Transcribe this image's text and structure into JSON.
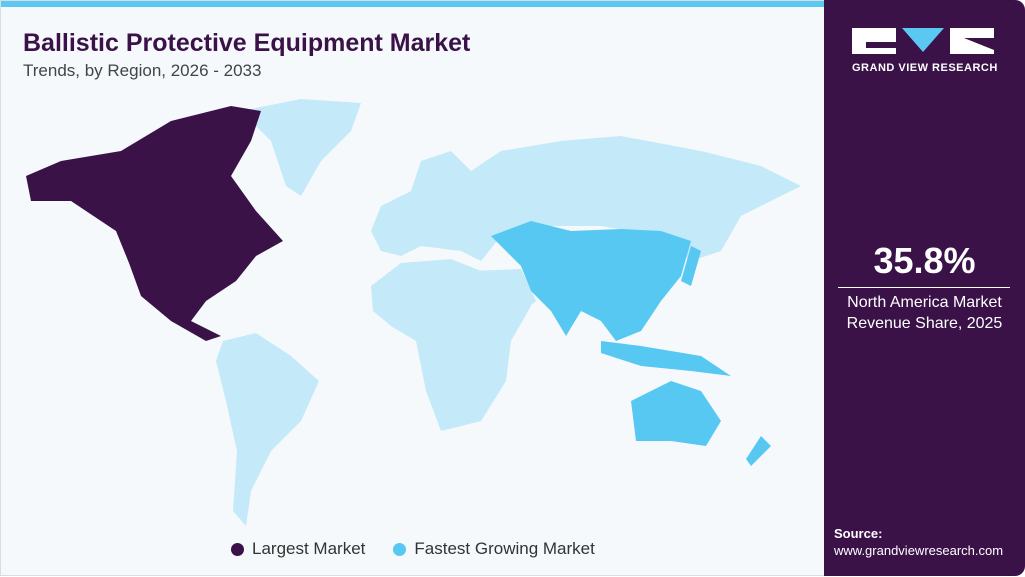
{
  "header": {
    "title": "Ballistic Protective Equipment Market",
    "subtitle": "Trends, by Region, 2026 - 2033"
  },
  "map": {
    "regions": [
      {
        "name": "North America",
        "category": "Largest Market"
      },
      {
        "name": "Asia Pacific",
        "category": "Fastest Growing Market"
      }
    ]
  },
  "legend": {
    "items": [
      {
        "label": "Largest Market",
        "color": "#3a1248"
      },
      {
        "label": "Fastest Growing Market",
        "color": "#57c8f2"
      }
    ]
  },
  "colors": {
    "largest": "#3a1248",
    "fastest": "#57c8f2",
    "other": "#c4e9f9",
    "panel": "#3a1248"
  },
  "sidebar": {
    "logo_text": "GRAND VIEW RESEARCH",
    "stat_value": "35.8%",
    "stat_label": "North America Market Revenue Share, 2025",
    "source_label": "Source:",
    "source_url": "www.grandviewresearch.com"
  }
}
